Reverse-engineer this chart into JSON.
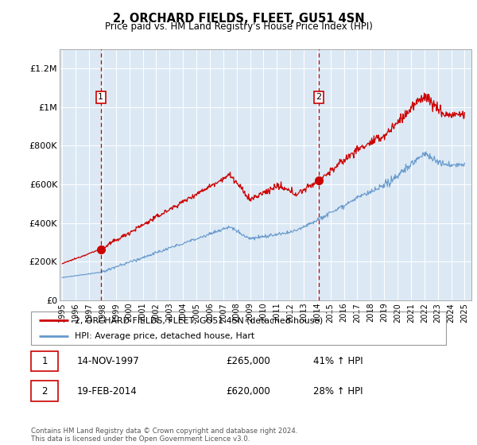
{
  "title": "2, ORCHARD FIELDS, FLEET, GU51 4SN",
  "subtitle": "Price paid vs. HM Land Registry's House Price Index (HPI)",
  "legend_line1": "2, ORCHARD FIELDS, FLEET, GU51 4SN (detached house)",
  "legend_line2": "HPI: Average price, detached house, Hart",
  "sale1_date": "14-NOV-1997",
  "sale1_price": "£265,000",
  "sale1_hpi": "41% ↑ HPI",
  "sale1_year": 1997.87,
  "sale1_value": 265000,
  "sale2_date": "19-FEB-2014",
  "sale2_price": "£620,000",
  "sale2_hpi": "28% ↑ HPI",
  "sale2_year": 2014.13,
  "sale2_value": 620000,
  "ylabel_ticks": [
    "£0",
    "£200K",
    "£400K",
    "£600K",
    "£800K",
    "£1M",
    "£1.2M"
  ],
  "ytick_values": [
    0,
    200000,
    400000,
    600000,
    800000,
    1000000,
    1200000
  ],
  "ylim": [
    0,
    1300000
  ],
  "xlim_start": 1995.0,
  "xlim_end": 2025.5,
  "red_line_color": "#cc0000",
  "blue_line_color": "#6699cc",
  "vline_color": "#cc0000",
  "plot_bg_color": "#dce9f5",
  "bg_color": "#ffffff",
  "grid_color": "#ffffff",
  "footer": "Contains HM Land Registry data © Crown copyright and database right 2024.\nThis data is licensed under the Open Government Licence v3.0."
}
